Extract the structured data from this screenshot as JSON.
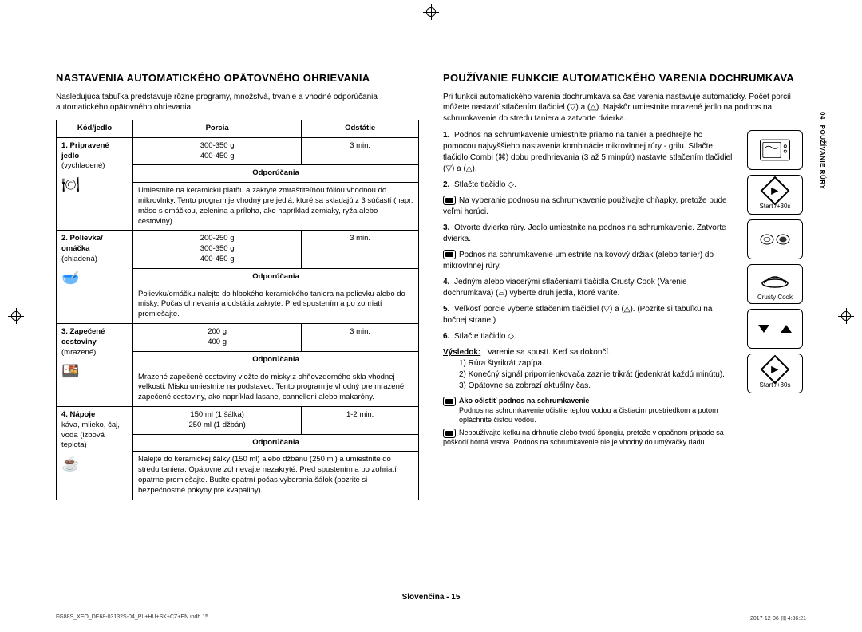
{
  "left": {
    "title": "NASTAVENIA AUTOMATICKÉHO OPÄTOVNÉHO OHRIEVANIA",
    "intro": "Nasledujúca tabuľka predstavuje rôzne programy, množstvá, trvanie a vhodné odporúčania automatického opätovného ohrievania.",
    "headers": {
      "code": "Kód/jedlo",
      "portion": "Porcia",
      "stand": "Odstátie",
      "rec": "Odporúčania"
    },
    "rows": [
      {
        "code_b": "1. Pripravené jedlo",
        "code_s": "(vychladené)",
        "icon": "🍽",
        "portion": "300-350 g\n400-450 g",
        "stand": "3 min.",
        "rec": "Umiestnite na keramickú platňu a zakryte zmraštiteľnou fóliou vhodnou do mikrovlnky. Tento program je vhodný pre jedlá, ktoré sa skladajú z 3 súčastí (napr. mäso s omáčkou, zelenina a príloha, ako napríklad zemiaky, ryža alebo cestoviny)."
      },
      {
        "code_b": "2. Polievka/ omáčka",
        "code_s": "(chladená)",
        "icon": "🥣",
        "portion": "200-250 g\n300-350 g\n400-450 g",
        "stand": "3 min.",
        "rec": "Polievku/omáčku nalejte do hlbokého keramického taniera na polievku alebo do misky. Počas ohrievania a odstátia zakryte. Pred spustením a po zohriatí premiešajte."
      },
      {
        "code_b": "3. Zapečené cestoviny",
        "code_s": "(mrazené)",
        "icon": "🍱",
        "portion": "200 g\n400 g",
        "stand": "3 min.",
        "rec": "Mrazené zapečené cestoviny vložte do misky z ohňovzdorného skla vhodnej veľkosti. Misku umiestnite na podstavec. Tento program je vhodný pre mrazené zapečené cestoviny, ako napríklad lasane, cannelloni alebo makaróny."
      },
      {
        "code_b": "4. Nápoje",
        "code_s": "káva, mlieko, čaj, voda (izbová teplota)",
        "icon": "☕",
        "portion": "150 ml (1 šálka)\n250 ml (1 džbán)",
        "stand": "1-2 min.",
        "rec": "Nalejte do keramickej šálky (150 ml) alebo džbánu (250 ml) a umiestnite do stredu taniera. Opätovne zohrievajte nezakryté. Pred spustením a po zohriatí opatrne premiešajte. Buďte opatrní počas vyberania šálok (pozrite si bezpečnostné pokyny pre kvapaliny)."
      }
    ]
  },
  "right": {
    "title": "POUŽÍVANIE FUNKCIE AUTOMATICKÉHO VARENIA DOCHRUMKAVA",
    "intro": "Pri funkcii automatického varenia dochrumkava sa čas varenia nastavuje automaticky. Počet porcií môžete nastaviť stlačením tlačidiel (▽) a (△). Najskôr umiestnite mrazené jedlo na podnos na schrumkavenie do stredu taniera a zatvorte dvierka.",
    "steps": [
      "Podnos na schrumkavenie umiestnite priamo na tanier a predhrejte ho pomocou najvyššieho nastavenia kombinácie mikrovlnnej rúry - grilu. Stlačte tlačidlo Combi (⌘) dobu predhrievania (3 až 5 minpút) nastavte stlačením tlačidiel (▽) a (△).",
      "Stlačte tlačidlo ◇.",
      "Otvorte dvierka rúry. Jedlo umiestnite na podnos na schrumkavenie. Zatvorte dvierka.",
      "Jedným alebo viacerými stlačeniami tlačidla Crusty Cook (Varenie dochrumkava) (⌓) vyberte druh jedla, ktoré varíte.",
      "Veľkosť porcie vyberte stlačením tlačidiel (▽) a (△). (Pozrite si tabuľku na bočnej strane.)",
      "Stlačte tlačidlo ◇."
    ],
    "note2": "Na vyberanie podnosu na schrumkavenie používajte chňapky, pretože bude veľmi horúci.",
    "note3": "Podnos na schrumkavenie umiestnite na kovový držiak (alebo tanier) do mikrovlnnej rúry.",
    "result_lbl": "Výsledok:",
    "result_txt": "Varenie sa spustí. Keď sa dokončí.",
    "result_items": [
      "1) Rúra štyrikrát zapípa.",
      "2) Konečný signál pripomienkovača zaznie trikrát (jedenkrát každú minútu).",
      "3) Opätovne sa zobrazí aktuálny čas."
    ],
    "clean_h": "Ako očistiť podnos na schrumkavenie",
    "clean_1": "Podnos na schrumkavenie očistite teplou vodou a čistiacim prostriedkom a potom opláchnite čistou vodou.",
    "clean_2": "Nepoužívajte kefku na drhnutie alebo tvrdú špongiu, pretože v opačnom prípade sa poškodí horná vrstva. Podnos na schrumkavenie nie je vhodný do umývačky riadu",
    "btn_start": "Start /+30s",
    "btn_crusty": "Crusty Cook"
  },
  "sidetab": {
    "num": "04",
    "txt": "POUŽÍVANIE RÚRY"
  },
  "footer": "Slovenčina - 15",
  "footL": "FG88S_XEO_DE68-03132S-04_PL+HU+SK+CZ+EN.indb   15",
  "footR": "2017-12-06   ㏾ 4:36:21"
}
